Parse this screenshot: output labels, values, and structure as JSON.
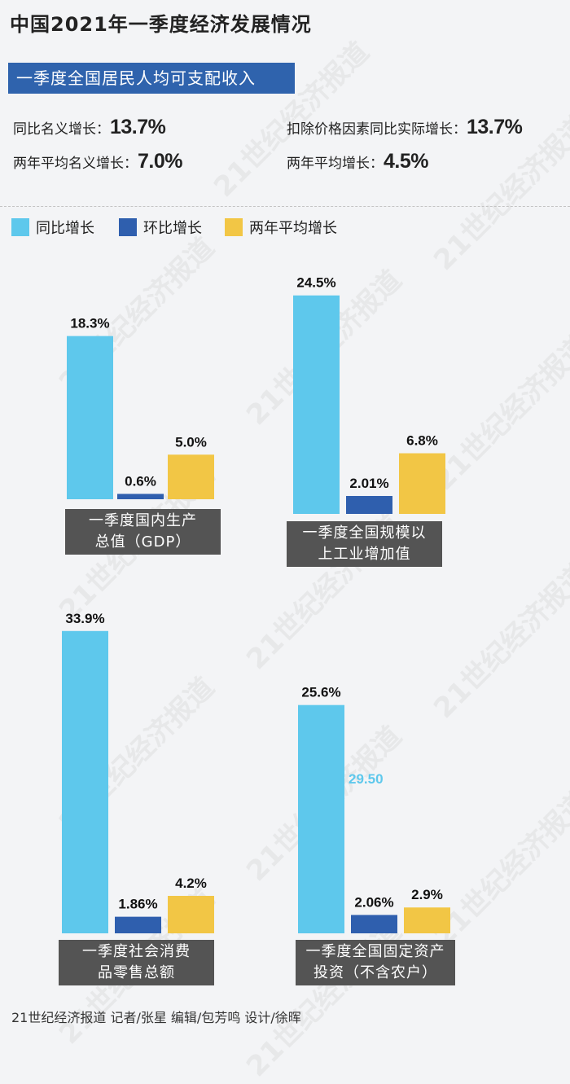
{
  "title": "中国2021年一季度经济发展情况",
  "banner": "一季度全国居民人均可支配收入",
  "stats": [
    {
      "label": "同比名义增长：",
      "value": "13.7%"
    },
    {
      "label": "扣除价格因素同比实际增长：",
      "value": "13.7%"
    },
    {
      "label": "两年平均名义增长：",
      "value": "7.0%"
    },
    {
      "label": "两年平均增长：",
      "value": "4.5%"
    }
  ],
  "legend": [
    {
      "name": "同比增长",
      "color": "#5ec8ec"
    },
    {
      "name": "环比增长",
      "color": "#2f5fae"
    },
    {
      "name": "两年平均增长",
      "color": "#f2c645"
    }
  ],
  "chart_data": [
    {
      "type": "bar",
      "title": "一季度国内生产总值（GDP）",
      "title_lines": [
        "一季度国内生产",
        "总值（GDP）"
      ],
      "series": [
        {
          "name": "同比增长",
          "value": 18.3,
          "label": "18.3%"
        },
        {
          "name": "环比增长",
          "value": 0.6,
          "label": "0.6%"
        },
        {
          "name": "两年平均增长",
          "value": 5.0,
          "label": "5.0%"
        }
      ]
    },
    {
      "type": "bar",
      "title": "一季度全国规模以上工业增加值",
      "title_lines": [
        "一季度全国规模以",
        "上工业增加值"
      ],
      "series": [
        {
          "name": "同比增长",
          "value": 24.5,
          "label": "24.5%"
        },
        {
          "name": "环比增长",
          "value": 2.01,
          "label": "2.01%"
        },
        {
          "name": "两年平均增长",
          "value": 6.8,
          "label": "6.8%"
        }
      ]
    },
    {
      "type": "bar",
      "title": "一季度社会消费品零售总额",
      "title_lines": [
        "一季度社会消费",
        "品零售总额"
      ],
      "series": [
        {
          "name": "同比增长",
          "value": 33.9,
          "label": "33.9%"
        },
        {
          "name": "环比增长",
          "value": 1.86,
          "label": "1.86%"
        },
        {
          "name": "两年平均增长",
          "value": 4.2,
          "label": "4.2%"
        }
      ]
    },
    {
      "type": "bar",
      "title": "一季度全国固定资产投资（不含农户）",
      "title_lines": [
        "一季度全国固定资产",
        "投资（不含农户）"
      ],
      "annotation": "29.50",
      "series": [
        {
          "name": "同比增长",
          "value": 25.6,
          "label": "25.6%"
        },
        {
          "name": "环比增长",
          "value": 2.06,
          "label": "2.06%"
        },
        {
          "name": "两年平均增长",
          "value": 2.9,
          "label": "2.9%"
        }
      ]
    }
  ],
  "footer": "21世纪经济报道 记者/张星 编辑/包芳鸣 设计/徐晖",
  "watermark": "21世纪经济报道"
}
